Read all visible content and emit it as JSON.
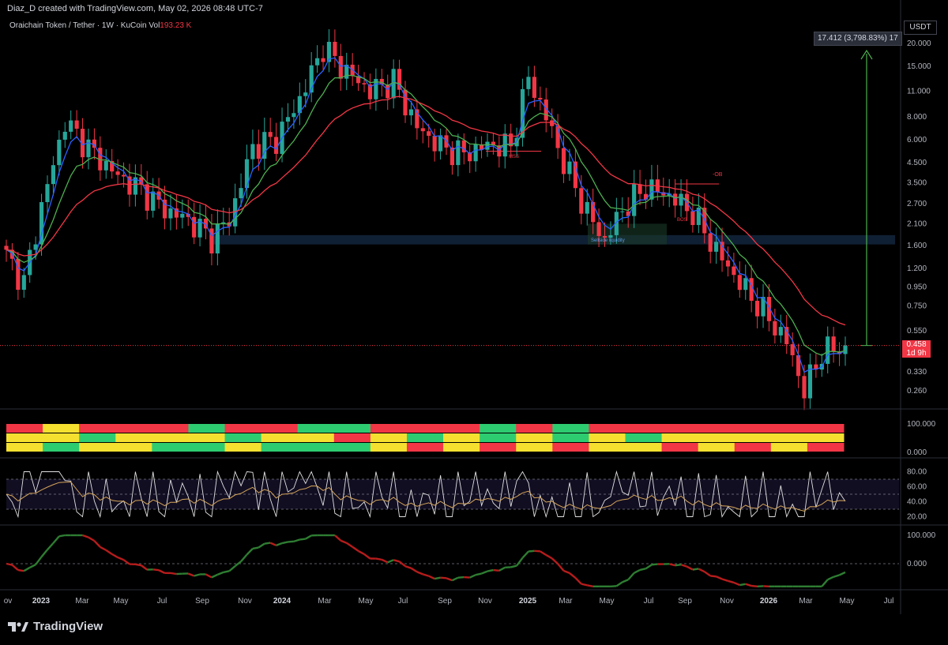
{
  "header": {
    "attribution": "Diaz_D created with TradingView.com, May 02, 2026 08:48 UTC-7"
  },
  "symbol": {
    "title": "Oraichain Token / Tether · 1W · KuCoin",
    "vol_label": "Vol",
    "vol_value": "193.23 K"
  },
  "currency": "USDT",
  "measure_label": "17.412 (3,798.83%) 17",
  "price_label": {
    "value": "0.458",
    "countdown": "1d 9h"
  },
  "annotations": {
    "mss": "MSS",
    "ob": "-OB",
    "bos": "BOS",
    "sellside": "Sellside liquidity"
  },
  "brand": "TradingView",
  "colors": {
    "up": "#26a69a",
    "down": "#f23645",
    "ema_fast": "#2962ff",
    "ema_mid": "#4caf50",
    "ema_slow": "#f23645"
  },
  "chart_data": [
    {
      "type": "candlestick",
      "scale": "log",
      "y_ticks": [
        20.0,
        15.0,
        11.0,
        8.0,
        6.0,
        4.5,
        3.5,
        2.7,
        2.1,
        1.6,
        1.2,
        0.95,
        0.75,
        0.55,
        0.458,
        0.33,
        0.26
      ],
      "y_tick_labels": [
        "20.000",
        "15.000",
        "11.000",
        "8.000",
        "6.000",
        "4.500",
        "3.500",
        "2.700",
        "2.100",
        "1.600",
        "1.200",
        "0.950",
        "0.750",
        "0.550",
        "0.458",
        "0.330",
        "0.260"
      ],
      "x_labels": [
        "ov",
        "2023",
        "Mar",
        "May",
        "Jul",
        "Sep",
        "Nov",
        "2024",
        "Mar",
        "May",
        "Jul",
        "Sep",
        "Nov",
        "2025",
        "Mar",
        "May",
        "Jul",
        "Sep",
        "Nov",
        "2026",
        "Mar",
        "May",
        "Jul"
      ],
      "x_bold": [
        "2023",
        "2024",
        "2025",
        "2026"
      ],
      "approx_close_path": [
        [
          0,
          1.4
        ],
        [
          3,
          1.0
        ],
        [
          6,
          2.6
        ],
        [
          10,
          7.5
        ],
        [
          15,
          5.0
        ],
        [
          19,
          3.8
        ],
        [
          23,
          3.2
        ],
        [
          27,
          2.5
        ],
        [
          31,
          2.2
        ],
        [
          35,
          1.75
        ],
        [
          38,
          2.2
        ],
        [
          42,
          5.5
        ],
        [
          46,
          6.0
        ],
        [
          50,
          10.0
        ],
        [
          54,
          19.0
        ],
        [
          58,
          14.0
        ],
        [
          62,
          11.0
        ],
        [
          66,
          12.5
        ],
        [
          70,
          7.0
        ],
        [
          74,
          5.5
        ],
        [
          78,
          5.0
        ],
        [
          82,
          5.6
        ],
        [
          86,
          5.5
        ],
        [
          89,
          13.0
        ],
        [
          92,
          8.0
        ],
        [
          95,
          4.5
        ],
        [
          99,
          2.4
        ],
        [
          102,
          1.7
        ],
        [
          105,
          2.5
        ],
        [
          109,
          3.3
        ],
        [
          113,
          3.0
        ],
        [
          117,
          2.4
        ],
        [
          121,
          1.5
        ],
        [
          125,
          1.0
        ],
        [
          129,
          0.7
        ],
        [
          133,
          0.48
        ],
        [
          136,
          0.26
        ],
        [
          139,
          0.42
        ],
        [
          143,
          0.458
        ]
      ]
    },
    {
      "type": "table",
      "name": "trend-heatmap",
      "rows": 3,
      "y_ticks": [
        "100.000",
        "0.000"
      ]
    },
    {
      "type": "line",
      "name": "rsi",
      "y_ticks": [
        80.0,
        60.0,
        40.0,
        20.0
      ],
      "y_tick_labels": [
        "80.00",
        "60.00",
        "40.00",
        "20.00"
      ],
      "last_value": 40.5
    },
    {
      "type": "area",
      "name": "momentum",
      "y_ticks": [
        "100.000",
        "0.000"
      ]
    }
  ]
}
